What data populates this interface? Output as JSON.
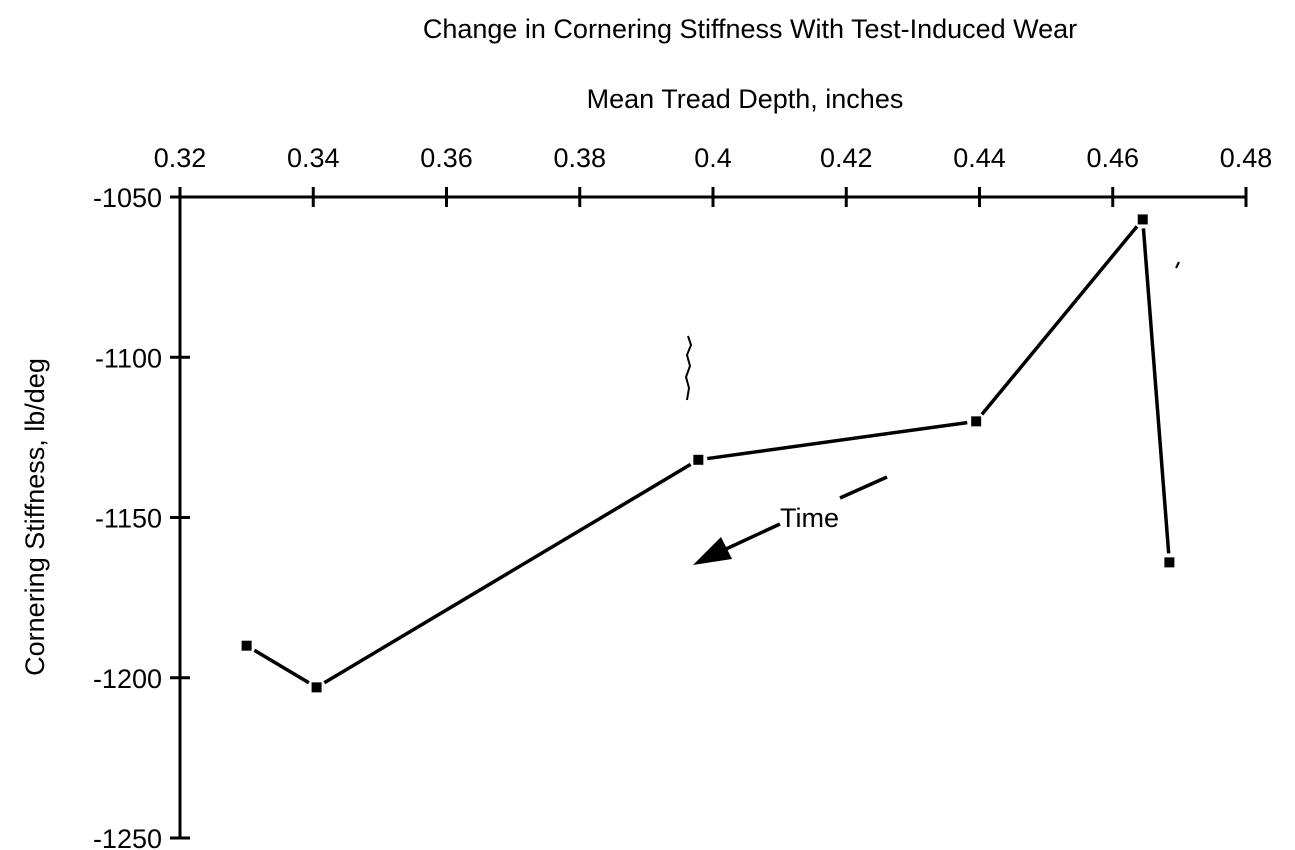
{
  "chart_data": {
    "type": "line",
    "title": "Change in Cornering Stiffness With Test-Induced Wear",
    "xlabel": "Mean Tread Depth, inches",
    "ylabel": "Cornering Stiffness, lb/deg",
    "xlim": [
      0.32,
      0.48
    ],
    "ylim": [
      -1250,
      -1050
    ],
    "x_ticks": [
      "0.32",
      "0.34",
      "0.36",
      "0.38",
      "0.4",
      "0.42",
      "0.44",
      "0.46",
      "0.48"
    ],
    "y_ticks": [
      "-1050",
      "-1100",
      "-1150",
      "-1200",
      "-1250"
    ],
    "x_axis_position": "top",
    "grid": false,
    "legend": "none",
    "series": [
      {
        "x": [
          0.33,
          0.3405,
          0.3978,
          0.4395,
          0.4645,
          0.4685
        ],
        "y": [
          -1190,
          -1203,
          -1132,
          -1120,
          -1057,
          -1164
        ]
      }
    ],
    "annotations": [
      {
        "text": "Time",
        "arrow_direction": "toward decreasing tread depth"
      }
    ],
    "colors": {
      "line": "#000000",
      "marker": "#000000",
      "background": "#ffffff"
    }
  }
}
